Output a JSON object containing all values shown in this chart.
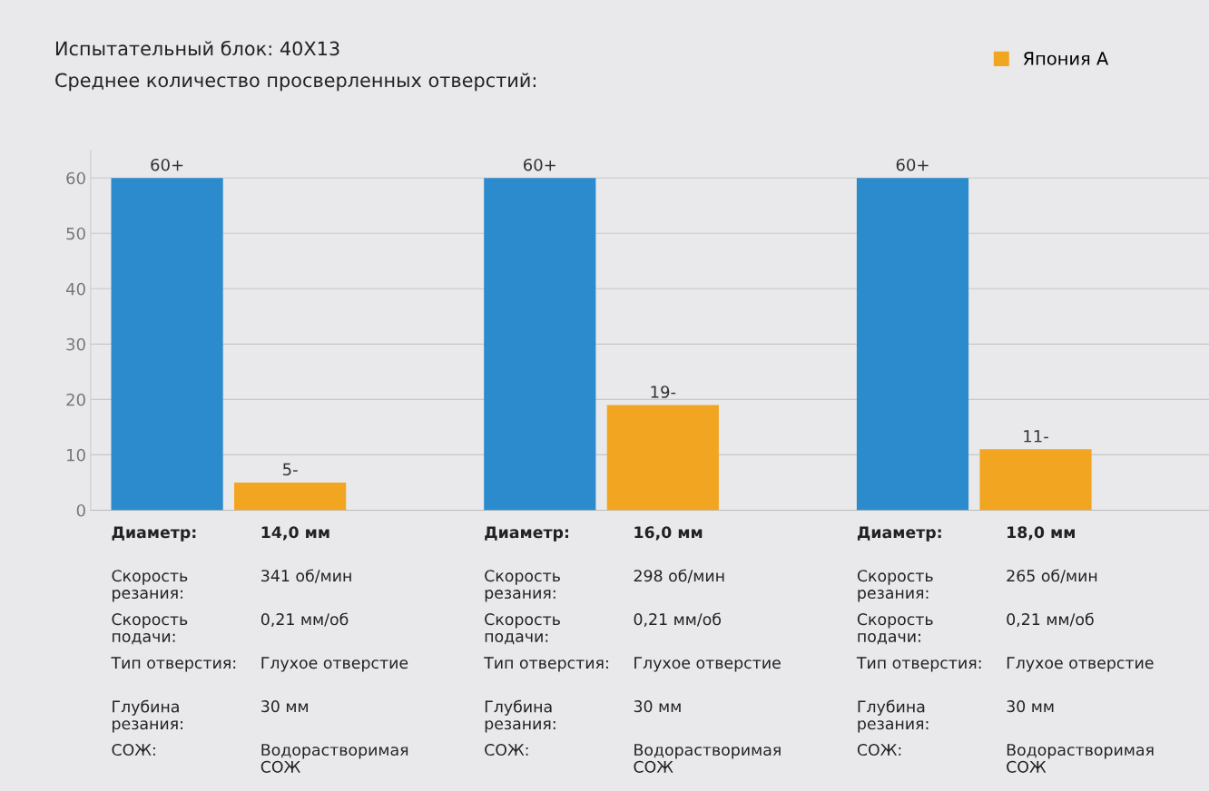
{
  "chart_data": {
    "type": "bar",
    "title": "Испытательный блок: 40X13",
    "subtitle": "Среднее количество просверленных отверстий:",
    "categories": [
      null,
      null,
      null
    ],
    "series": [
      {
        "color": "#2b8bcc",
        "values": [
          60,
          60,
          60
        ],
        "value_labels": [
          "60+",
          "60+",
          "60+"
        ]
      },
      {
        "name": "Япония A",
        "color": "#f2a520",
        "values": [
          5,
          19,
          11
        ],
        "value_labels": [
          "5-",
          "19-",
          "11-"
        ]
      }
    ],
    "ylim": [
      0,
      65
    ],
    "yticks": [
      0,
      10,
      20,
      30,
      40,
      50,
      60
    ],
    "grid": "y",
    "legend": "top right",
    "annotations": [
      "Диаметр:",
      "14,0 мм",
      "Скорость резания:",
      "341 об/мин",
      "Скорость подачи:",
      "0,21 мм/об",
      "Тип отверстия:",
      "Глухое отверстие",
      "Глубина резания:",
      "30 мм",
      "СОЖ:",
      "Водорастворимая СОЖ",
      "Диаметр:",
      "16,0 мм",
      "Скорость резания:",
      "298 об/мин",
      "Скорость подачи:",
      "0,21 мм/об",
      "Тип отверстия:",
      "Глухое отверстие",
      "Глубина резания:",
      "30 мм",
      "СОЖ:",
      "Водорастворимая СОЖ",
      "Диаметр:",
      "18,0 мм",
      "Скорость резания:",
      "265 об/мин",
      "Скорость подачи:",
      "0,21 мм/об",
      "Тип отверстия:",
      "Глухое отверстие",
      "Глубина резания:",
      "30 мм",
      "СОЖ:",
      "Водорастворимая СОЖ"
    ]
  }
}
